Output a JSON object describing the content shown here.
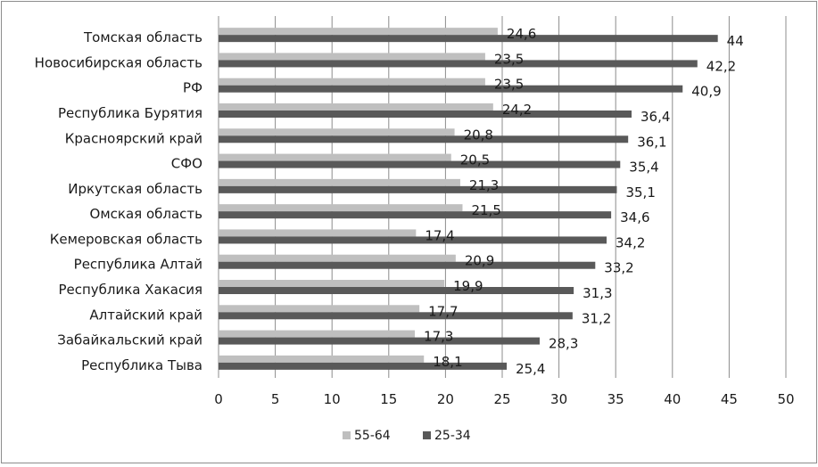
{
  "chart_data": {
    "type": "bar",
    "orientation": "horizontal",
    "categories": [
      "Томская область",
      "Новосибирская область",
      "РФ",
      "Республика Бурятия",
      "Красноярский край",
      "СФО",
      "Иркутская область",
      "Омская область",
      "Кемеровская область",
      "Республика Алтай",
      "Республика Хакасия",
      "Алтайский край",
      "Забайкальский край",
      "Республика Тыва"
    ],
    "series": [
      {
        "name": "55-64",
        "color": "#bfbfbf",
        "values": [
          24.6,
          23.5,
          23.5,
          24.2,
          20.8,
          20.5,
          21.3,
          21.5,
          17.4,
          20.9,
          19.9,
          17.7,
          17.3,
          18.1
        ],
        "labels": [
          "24,6",
          "23,5",
          "23,5",
          "24,2",
          "20,8",
          "20,5",
          "21,3",
          "21,5",
          "17,4",
          "20,9",
          "19,9",
          "17,7",
          "17,3",
          "18,1"
        ]
      },
      {
        "name": "25-34",
        "color": "#595959",
        "values": [
          44,
          42.2,
          40.9,
          36.4,
          36.1,
          35.4,
          35.1,
          34.6,
          34.2,
          33.2,
          31.3,
          31.2,
          28.3,
          25.4
        ],
        "labels": [
          "44",
          "42,2",
          "40,9",
          "36,4",
          "36,1",
          "35,4",
          "35,1",
          "34,6",
          "34,2",
          "33,2",
          "31,3",
          "31,2",
          "28,3",
          "25,4"
        ]
      }
    ],
    "xlim": [
      0,
      50
    ],
    "x_ticks": [
      "0",
      "5",
      "10",
      "15",
      "20",
      "25",
      "30",
      "35",
      "40",
      "45",
      "50"
    ],
    "grid": "vertical",
    "legend": "bottom",
    "title": "",
    "xlabel": "",
    "ylabel": ""
  }
}
